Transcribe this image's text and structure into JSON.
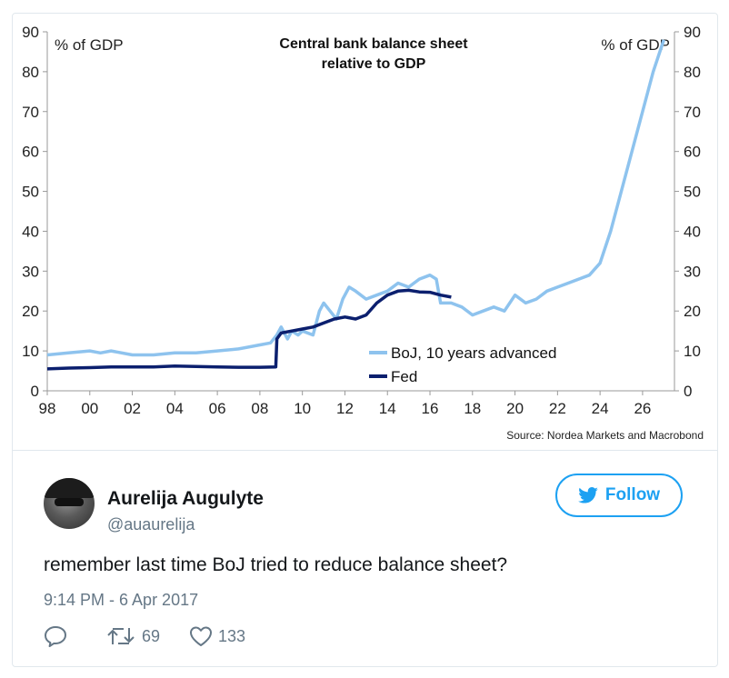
{
  "chart_data": {
    "type": "line",
    "title": "Central bank balance sheet relative to GDP",
    "title_lines": [
      "Central bank balance sheet",
      "relative to GDP"
    ],
    "y_left_label": "% of GDP",
    "y_right_label": "% of GDP",
    "source": "Source: Nordea Markets and Macrobond",
    "x_ticks": [
      "98",
      "00",
      "02",
      "04",
      "06",
      "08",
      "10",
      "12",
      "14",
      "16",
      "18",
      "20",
      "22",
      "24",
      "26"
    ],
    "y_ticks": [
      0,
      10,
      20,
      30,
      40,
      50,
      60,
      70,
      80,
      90
    ],
    "xlim": [
      1998,
      2027.5
    ],
    "ylim": [
      0,
      90
    ],
    "legend_position": "bottom-center",
    "grid": false,
    "series": [
      {
        "name": "BoJ, 10 years advanced",
        "color": "#8ec3ee",
        "x": [
          1998,
          1999,
          2000,
          2000.5,
          2001,
          2002,
          2003,
          2004,
          2005,
          2006,
          2007,
          2008,
          2008.5,
          2008.8,
          2009,
          2009.3,
          2009.5,
          2009.8,
          2010,
          2010.5,
          2010.8,
          2011,
          2011.3,
          2011.6,
          2011.9,
          2012.2,
          2012.5,
          2013,
          2013.5,
          2014,
          2014.5,
          2015,
          2015.5,
          2016,
          2016.3,
          2016.5,
          2017,
          2017.5,
          2018,
          2018.5,
          2019,
          2019.5,
          2020,
          2020.5,
          2021,
          2021.5,
          2022,
          2022.5,
          2023,
          2023.5,
          2024,
          2024.5,
          2025,
          2025.5,
          2026,
          2026.5,
          2027
        ],
        "values": [
          9,
          9.5,
          10,
          9.5,
          10,
          9,
          9,
          9.5,
          9.5,
          10,
          10.5,
          11.5,
          12,
          14,
          16,
          13,
          15,
          14,
          15,
          14,
          20,
          22,
          20,
          18,
          23,
          26,
          25,
          23,
          24,
          25,
          27,
          26,
          28,
          29,
          28,
          22,
          22,
          21,
          19,
          20,
          21,
          20,
          24,
          22,
          23,
          25,
          26,
          27,
          28,
          29,
          32,
          40,
          50,
          60,
          70,
          80,
          88
        ]
      },
      {
        "name": "Fed",
        "color": "#0b1f6e",
        "x": [
          1998,
          1999,
          2000,
          2001,
          2002,
          2003,
          2004,
          2005,
          2006,
          2007,
          2008,
          2008.75,
          2008.8,
          2009,
          2009.5,
          2010,
          2010.5,
          2011,
          2011.5,
          2012,
          2012.5,
          2013,
          2013.5,
          2014,
          2014.5,
          2015,
          2015.5,
          2016,
          2016.5,
          2017
        ],
        "values": [
          5.5,
          5.7,
          5.8,
          6,
          6,
          6,
          6.2,
          6.1,
          6,
          5.9,
          5.9,
          6,
          13,
          14.5,
          15,
          15.5,
          16,
          17,
          18,
          18.5,
          18,
          19,
          22,
          24,
          25,
          25.2,
          24.8,
          24.7,
          24,
          23.5
        ]
      }
    ]
  },
  "user": {
    "name": "Aurelija Augulyte",
    "handle": "@auaurelija"
  },
  "follow_label": "Follow",
  "tweet": {
    "text": "remember last time BoJ tried to reduce balance sheet?",
    "timestamp": "9:14 PM - 6 Apr 2017"
  },
  "actions": {
    "retweets": "69",
    "likes": "133"
  },
  "colors": {
    "brand": "#1da1f2",
    "muted": "#657786"
  },
  "icons": {
    "follow": "twitter-bird-icon",
    "reply": "reply-icon",
    "retweet": "retweet-icon",
    "like": "heart-icon"
  }
}
